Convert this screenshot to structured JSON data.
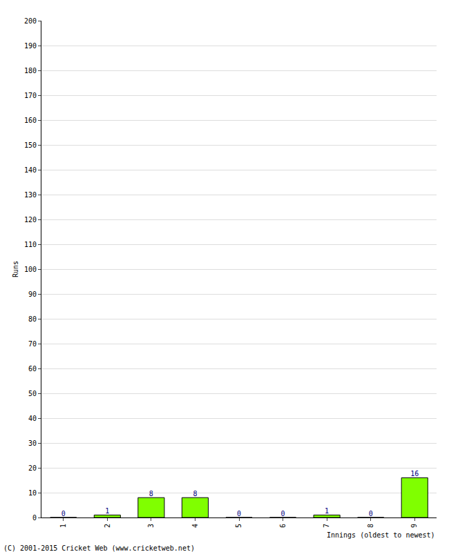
{
  "chart_data": {
    "type": "bar",
    "y_label": "Runs",
    "x_label": "Innings (oldest to newest)",
    "annotations": [
      "(C) 2001-2015 Cricket Web (www.cricketweb.net)"
    ],
    "categories": [
      "1",
      "2",
      "3",
      "4",
      "5",
      "6",
      "7",
      "8",
      "9"
    ],
    "values": [
      0,
      1,
      8,
      8,
      0,
      0,
      1,
      0,
      16
    ],
    "color": "#80ff00",
    "ylim": [
      0,
      200
    ],
    "yticks": [
      0,
      10,
      20,
      30,
      40,
      50,
      60,
      70,
      80,
      90,
      100,
      110,
      120,
      130,
      140,
      150,
      160,
      170,
      180,
      190,
      200
    ],
    "grid": true,
    "data_labels": true
  }
}
